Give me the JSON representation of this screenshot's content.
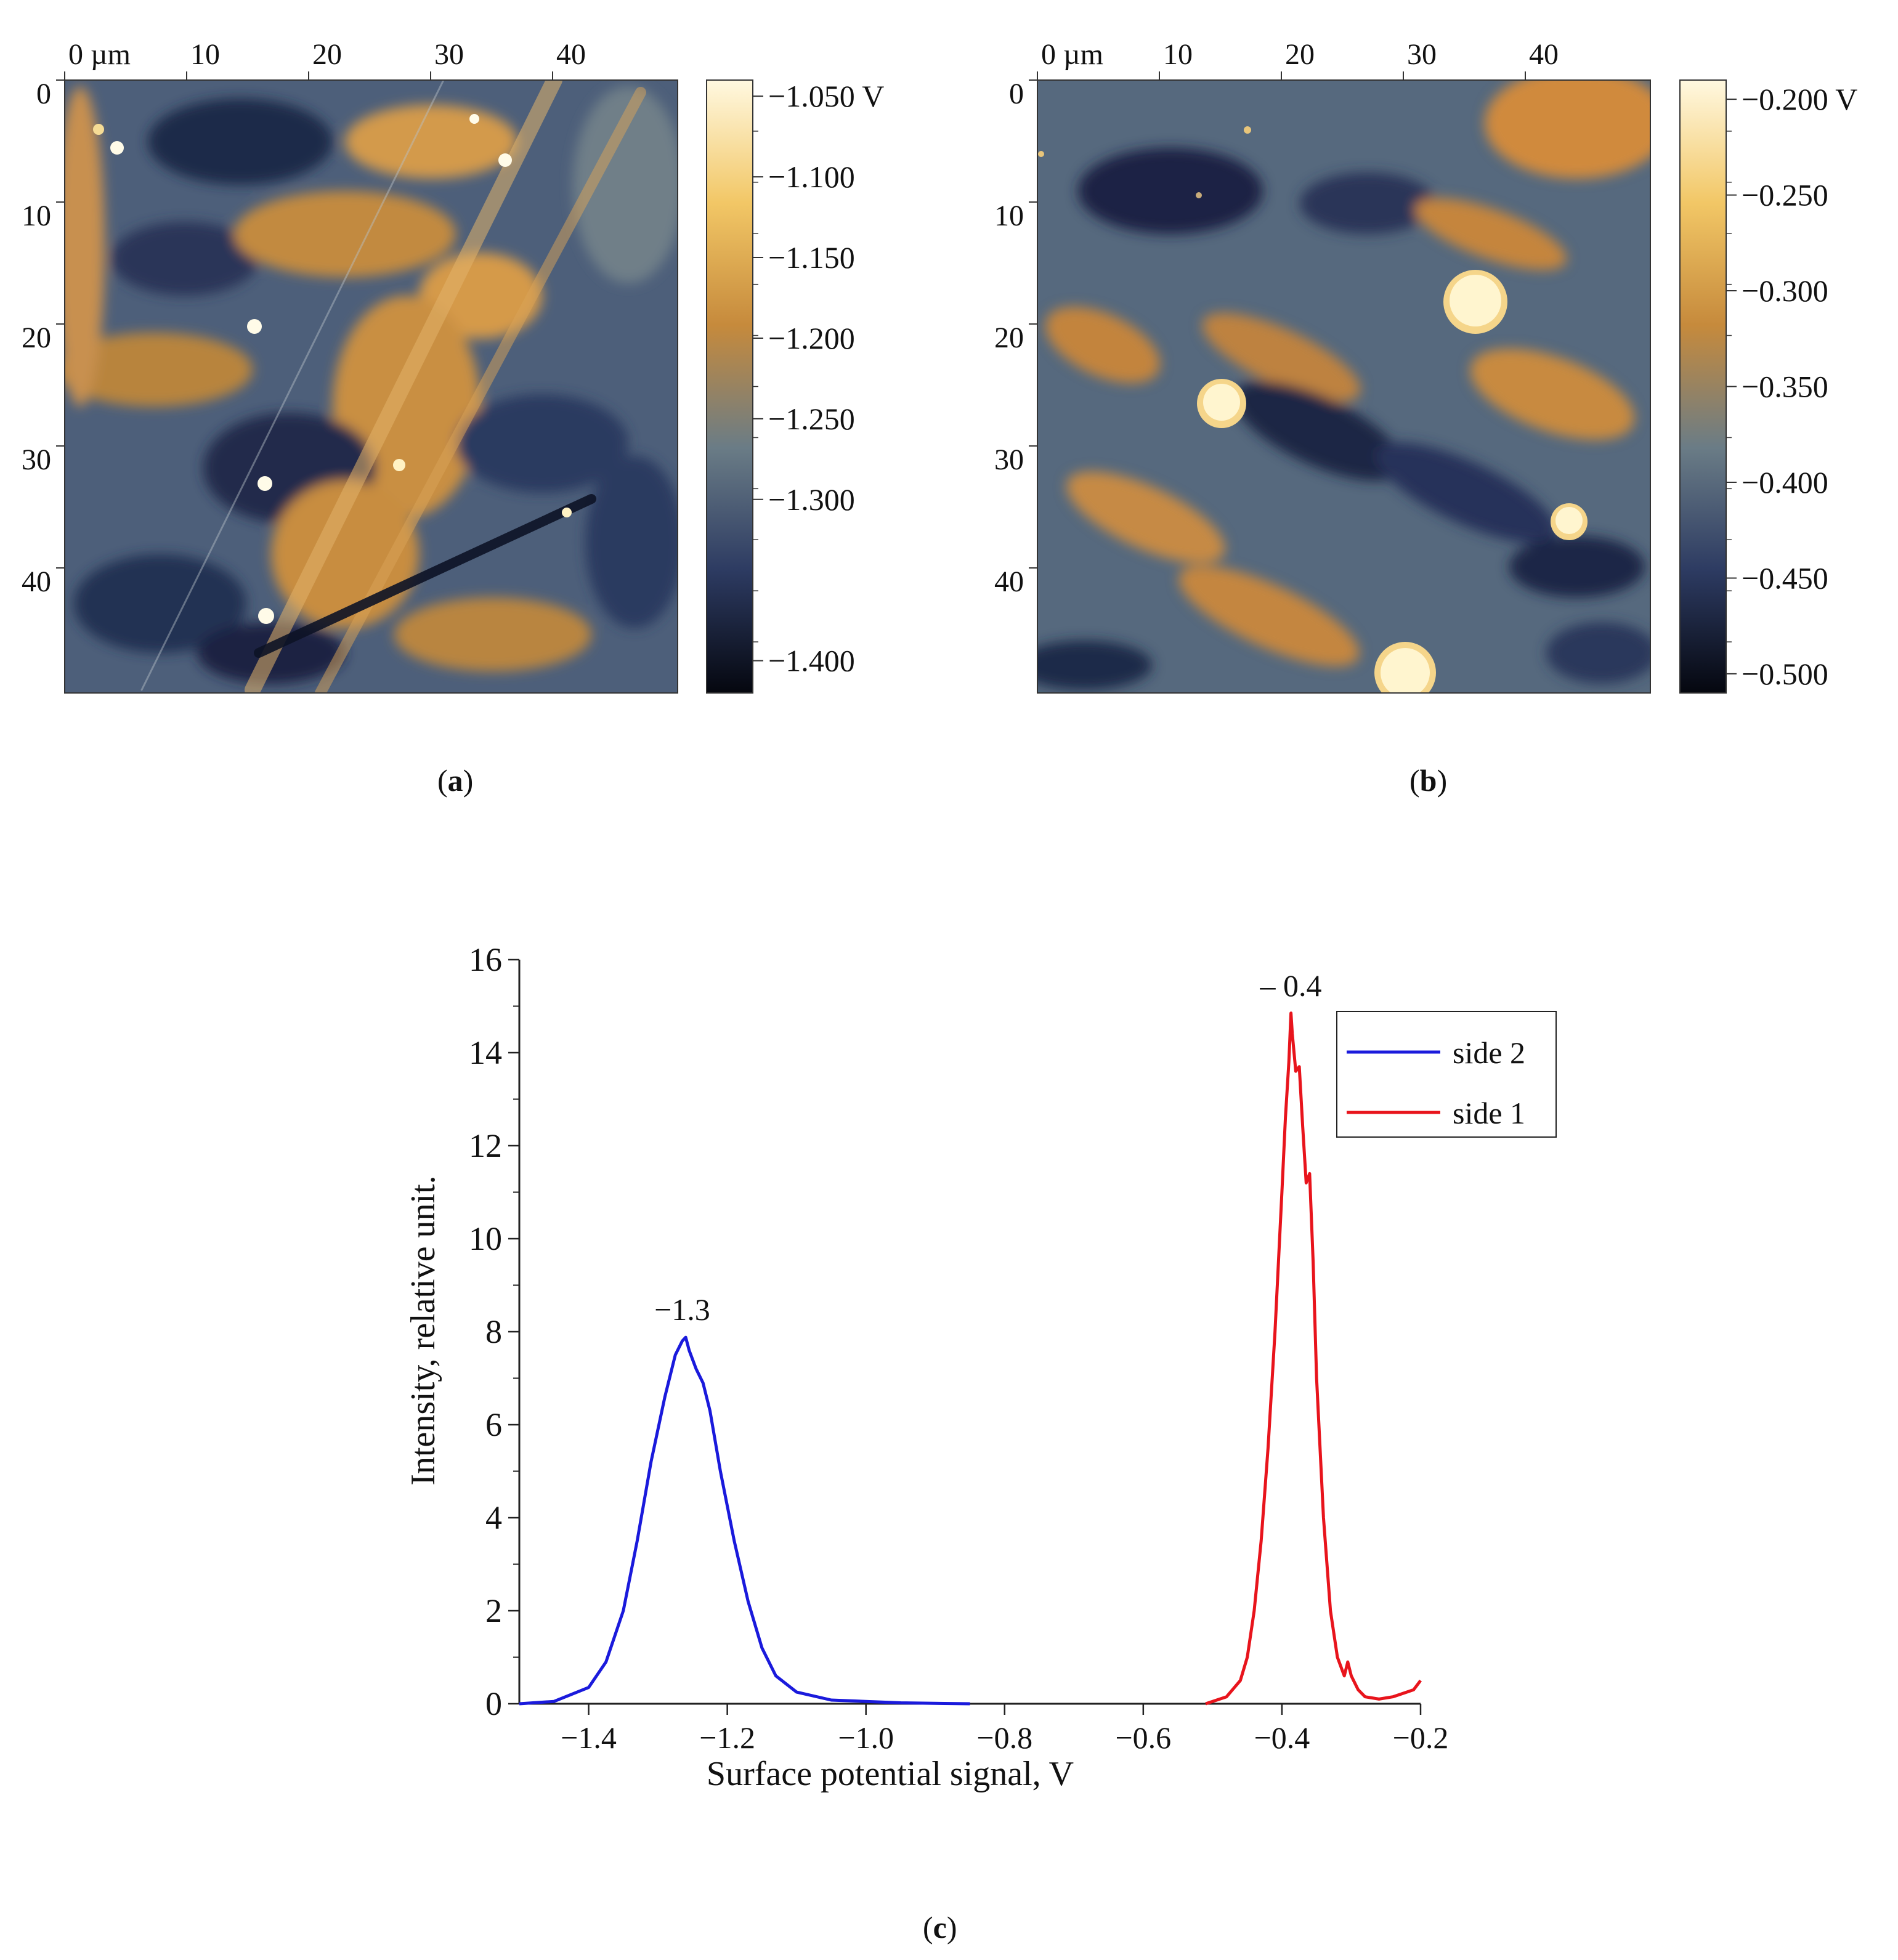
{
  "panels": {
    "a": {
      "caption_open": "(",
      "caption_letter": "a",
      "caption_close": ")",
      "x_ticks": [
        "0 µm",
        "10",
        "20",
        "30",
        "40"
      ],
      "y_ticks": [
        "0",
        "10",
        "20",
        "30",
        "40"
      ],
      "colorbar_ticks": [
        "−1.050 V",
        "−1.100",
        "−1.150",
        "−1.200",
        "−1.250",
        "−1.300",
        "−1.400"
      ],
      "colorbar_values": [
        -1.05,
        -1.1,
        -1.15,
        -1.2,
        -1.25,
        -1.3,
        -1.4
      ],
      "colorbar_range": [
        -1.42,
        -1.04
      ],
      "colors": {
        "dark": "#0b0f1e",
        "low": "#2d3b62",
        "mid": "#6a7c86",
        "high": "#d9903a",
        "bright": "#fff6d8"
      }
    },
    "b": {
      "caption_open": "(",
      "caption_letter": "b",
      "caption_close": ")",
      "x_ticks": [
        "0 µm",
        "10",
        "20",
        "30",
        "40"
      ],
      "y_ticks": [
        "0",
        "10",
        "20",
        "30",
        "40"
      ],
      "colorbar_ticks": [
        "−0.200 V",
        "−0.250",
        "−0.300",
        "−0.350",
        "−0.400",
        "−0.450",
        "−0.500"
      ],
      "colorbar_values": [
        -0.2,
        -0.25,
        -0.3,
        -0.35,
        -0.4,
        -0.45,
        -0.5
      ],
      "colorbar_range": [
        -0.51,
        -0.19
      ],
      "colors": {
        "dark": "#0b0f1e",
        "low": "#2d3b62",
        "mid": "#6a7c86",
        "high": "#d9903a",
        "bright": "#fff6d8"
      }
    }
  },
  "chart_data": {
    "type": "line",
    "caption_open": "(",
    "caption_letter": "c",
    "caption_close": ")",
    "xlabel": "Surface potential signal, V",
    "ylabel": "Intensity, relative unit.",
    "xlim": [
      -1.5,
      -0.2
    ],
    "ylim": [
      0,
      16
    ],
    "x_ticks": [
      -1.4,
      -1.2,
      -1.0,
      -0.8,
      -0.6,
      -0.4,
      -0.2
    ],
    "x_tick_labels": [
      "−1.4",
      "−1.2",
      "−1.0",
      "−0.8",
      "−0.6",
      "−0.4",
      "−0.2"
    ],
    "y_ticks": [
      0,
      2,
      4,
      6,
      8,
      10,
      12,
      14,
      16
    ],
    "y_tick_labels": [
      "0",
      "2",
      "4",
      "6",
      "8",
      "10",
      "12",
      "14",
      "16"
    ],
    "legend": {
      "position": "top-right",
      "entries": [
        "side 2",
        "side 1"
      ]
    },
    "series": [
      {
        "name": "side 2",
        "color": "#1a1adc",
        "x": [
          -1.5,
          -1.45,
          -1.4,
          -1.375,
          -1.35,
          -1.33,
          -1.31,
          -1.29,
          -1.275,
          -1.265,
          -1.26,
          -1.255,
          -1.245,
          -1.235,
          -1.225,
          -1.21,
          -1.19,
          -1.17,
          -1.15,
          -1.13,
          -1.1,
          -1.05,
          -0.95,
          -0.85
        ],
        "y": [
          0.0,
          0.05,
          0.35,
          0.9,
          2.0,
          3.5,
          5.2,
          6.6,
          7.5,
          7.8,
          7.88,
          7.6,
          7.2,
          6.9,
          6.3,
          5.0,
          3.5,
          2.2,
          1.2,
          0.6,
          0.25,
          0.08,
          0.02,
          0.0
        ]
      },
      {
        "name": "side 1",
        "color": "#e8141c",
        "x": [
          -0.51,
          -0.48,
          -0.46,
          -0.45,
          -0.44,
          -0.43,
          -0.42,
          -0.41,
          -0.4,
          -0.395,
          -0.39,
          -0.387,
          -0.385,
          -0.38,
          -0.375,
          -0.37,
          -0.365,
          -0.36,
          -0.355,
          -0.35,
          -0.34,
          -0.33,
          -0.32,
          -0.31,
          -0.305,
          -0.3,
          -0.29,
          -0.28,
          -0.26,
          -0.24,
          -0.22,
          -0.21,
          -0.2
        ],
        "y": [
          0.0,
          0.15,
          0.5,
          1.0,
          2.0,
          3.5,
          5.5,
          8.0,
          11.0,
          12.6,
          13.8,
          14.85,
          14.4,
          13.6,
          13.7,
          12.4,
          11.2,
          11.4,
          9.5,
          7.0,
          4.0,
          2.0,
          1.0,
          0.6,
          0.9,
          0.6,
          0.3,
          0.15,
          0.1,
          0.15,
          0.25,
          0.3,
          0.5
        ]
      }
    ],
    "annotations": [
      {
        "text": "−1.3",
        "x": -1.265,
        "y": 7.88
      },
      {
        "text": "– 0.4",
        "x": -0.387,
        "y": 14.85
      }
    ]
  }
}
